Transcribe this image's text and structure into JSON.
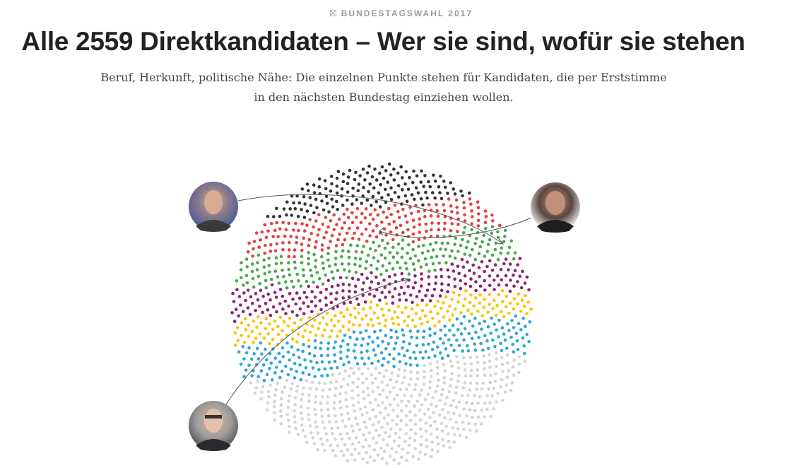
{
  "header": {
    "kicker_icon": "ballot-cross-icon",
    "kicker": "BUNDESTAGSWAHL 2017",
    "title": "Alle 2559 Direktkandidaten – Wer sie sind, wofür sie stehen",
    "subtitle": "Beruf, Herkunft, politische Nähe: Die einzelnen Punkte stehen für Kandidaten, die per Erststimme in den nächsten Bundestag einziehen wollen."
  },
  "visual": {
    "party_colors": [
      "#333333",
      "#e2403f",
      "#4ba84a",
      "#8c2471",
      "#fbc400",
      "#2da7d8",
      "#d4d4d4"
    ]
  }
}
